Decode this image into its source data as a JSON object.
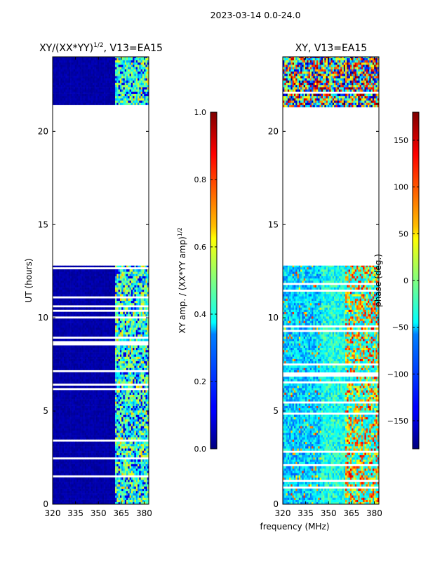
{
  "figure": {
    "suptitle": "2023-03-14 0.0-24.0",
    "shared_xlabel": "frequency (MHz)"
  },
  "chart_data": [
    {
      "type": "heatmap",
      "id": "amp-ratio",
      "title": "XY/(XX*YY)$^{1/2}$, V13=EA15",
      "title_display": "XY/(XX*YY)",
      "title_superscript": "1/2",
      "title_suffix": ", V13=EA15",
      "xlabel": "",
      "ylabel": "UT (hours)",
      "xlim": [
        320,
        383
      ],
      "ylim": [
        0,
        24
      ],
      "xticks": [
        320,
        335,
        350,
        365,
        380
      ],
      "yticks": [
        0,
        5,
        10,
        15,
        20
      ],
      "data_blocks_ut": [
        [
          0.0,
          12.8
        ],
        [
          21.3,
          24.0
        ]
      ],
      "no_data_ut": [
        12.8,
        21.3
      ],
      "colorbar": {
        "label": "XY amp. / (XX*YY amp)$^{1/2}$",
        "label_display": "XY amp. / (XX*YY amp)",
        "label_superscript": "1/2",
        "range": [
          0.0,
          1.0
        ],
        "ticks": [
          0.0,
          0.2,
          0.4,
          0.6,
          0.8,
          1.0
        ],
        "tick_labels": [
          "0.0",
          "0.2",
          "0.4",
          "0.6",
          "0.8",
          "1.0"
        ],
        "colormap": "jet"
      }
    },
    {
      "type": "heatmap",
      "id": "phase",
      "title": "XY, V13=EA15",
      "xlabel": "frequency (MHz)",
      "ylabel": "",
      "xlim": [
        320,
        383
      ],
      "ylim": [
        0,
        24
      ],
      "xticks": [
        320,
        335,
        350,
        365,
        380
      ],
      "yticks": [
        0,
        5,
        10,
        15,
        20
      ],
      "data_blocks_ut": [
        [
          0.0,
          12.8
        ],
        [
          21.3,
          24.0
        ]
      ],
      "no_data_ut": [
        12.8,
        21.3
      ],
      "colorbar": {
        "label": "phase (deg.)",
        "range": [
          -180,
          180
        ],
        "ticks": [
          -150,
          -100,
          -50,
          0,
          50,
          100,
          150
        ],
        "tick_labels": [
          "−150",
          "−100",
          "−50",
          "0",
          "50",
          "100",
          "150"
        ],
        "colormap": "jet"
      }
    }
  ],
  "colors": {
    "jet_dark_blue": "#00007f",
    "jet_cyan": "#00ffff",
    "jet_yellow": "#ffff00",
    "jet_dark_red": "#7f0000"
  }
}
